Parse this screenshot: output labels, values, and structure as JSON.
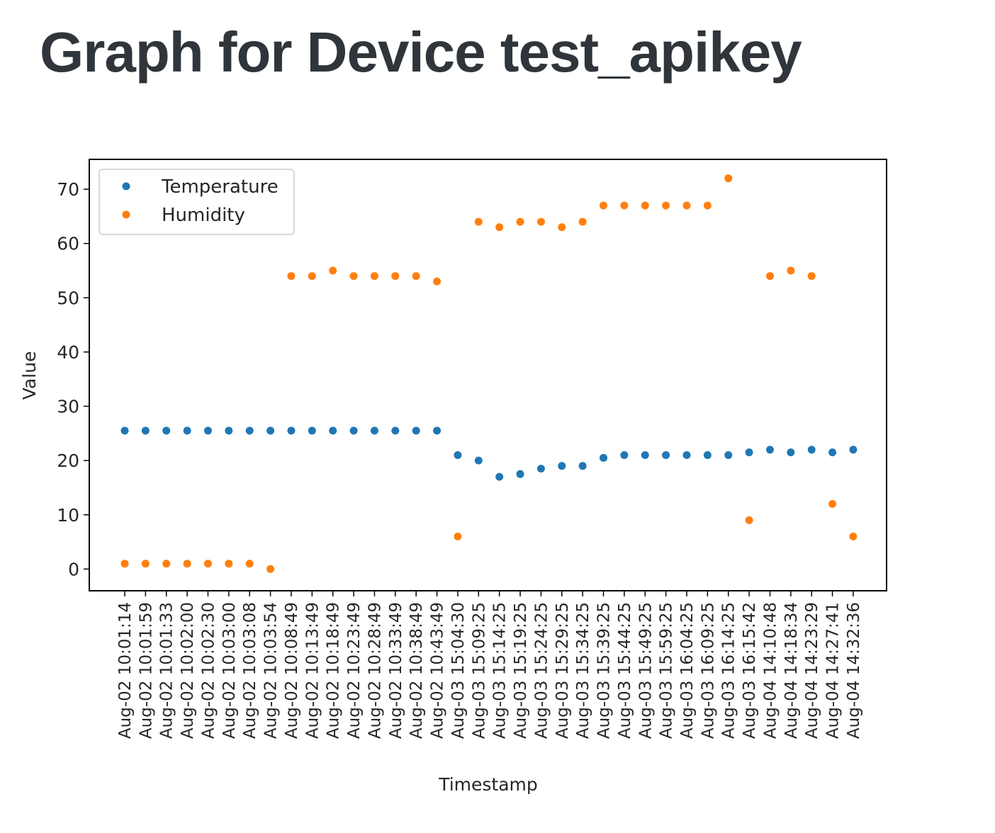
{
  "header": {
    "title": "Graph for Device test_apikey"
  },
  "chart_data": {
    "type": "scatter",
    "xlabel": "Timestamp",
    "ylabel": "Value",
    "ylim": [
      -4,
      75.5
    ],
    "yticks": [
      0,
      10,
      20,
      30,
      40,
      50,
      60,
      70
    ],
    "legend_position": "top-left",
    "grid": false,
    "categories": [
      "Aug-02 10:01:14",
      "Aug-02 10:01:59",
      "Aug-02 10:01:33",
      "Aug-02 10:02:00",
      "Aug-02 10:02:30",
      "Aug-02 10:03:00",
      "Aug-02 10:03:08",
      "Aug-02 10:03:54",
      "Aug-02 10:08:49",
      "Aug-02 10:13:49",
      "Aug-02 10:18:49",
      "Aug-02 10:23:49",
      "Aug-02 10:28:49",
      "Aug-02 10:33:49",
      "Aug-02 10:38:49",
      "Aug-02 10:43:49",
      "Aug-03 15:04:30",
      "Aug-03 15:09:25",
      "Aug-03 15:14:25",
      "Aug-03 15:19:25",
      "Aug-03 15:24:25",
      "Aug-03 15:29:25",
      "Aug-03 15:34:25",
      "Aug-03 15:39:25",
      "Aug-03 15:44:25",
      "Aug-03 15:49:25",
      "Aug-03 15:59:25",
      "Aug-03 16:04:25",
      "Aug-03 16:09:25",
      "Aug-03 16:14:25",
      "Aug-03 16:15:42",
      "Aug-04 14:10:48",
      "Aug-04 14:18:34",
      "Aug-04 14:23:29",
      "Aug-04 14:27:41",
      "Aug-04 14:32:36"
    ],
    "series": [
      {
        "name": "Temperature",
        "color": "#1f77b4",
        "values": [
          25.5,
          25.5,
          25.5,
          25.5,
          25.5,
          25.5,
          25.5,
          25.5,
          25.5,
          25.5,
          25.5,
          25.5,
          25.5,
          25.5,
          25.5,
          25.5,
          21,
          20,
          17,
          17.5,
          18.5,
          19,
          19,
          20.5,
          21,
          21,
          21,
          21,
          21,
          21,
          21.5,
          22,
          21.5,
          22,
          21.5,
          22
        ]
      },
      {
        "name": "Humidity",
        "color": "#ff7f0e",
        "values": [
          1,
          1,
          1,
          1,
          1,
          1,
          1,
          0,
          54,
          54,
          55,
          54,
          54,
          54,
          54,
          53,
          6,
          64,
          63,
          64,
          64,
          63,
          64,
          67,
          67,
          67,
          67,
          67,
          67,
          72,
          9,
          54,
          55,
          54,
          12,
          6
        ]
      }
    ]
  }
}
